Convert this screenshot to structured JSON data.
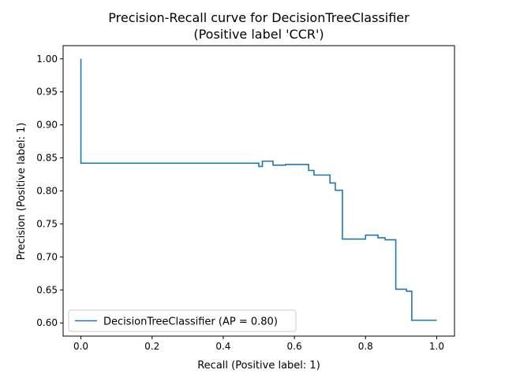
{
  "chart_data": {
    "type": "line",
    "title_line1": "Precision-Recall curve for DecisionTreeClassifier",
    "title_line2": "(Positive label 'CCR')",
    "xlabel": "Recall (Positive label: 1)",
    "ylabel": "Precision (Positive label: 1)",
    "xlim": [
      -0.05,
      1.05
    ],
    "ylim": [
      0.58,
      1.02
    ],
    "xticks": [
      0.0,
      0.2,
      0.4,
      0.6,
      0.8,
      1.0
    ],
    "xtick_labels": [
      "0.0",
      "0.2",
      "0.4",
      "0.6",
      "0.8",
      "1.0"
    ],
    "yticks": [
      0.6,
      0.65,
      0.7,
      0.75,
      0.8,
      0.85,
      0.9,
      0.95,
      1.0
    ],
    "ytick_labels": [
      "0.60",
      "0.65",
      "0.70",
      "0.75",
      "0.80",
      "0.85",
      "0.90",
      "0.95",
      "1.00"
    ],
    "grid": false,
    "legend_position": "lower-left",
    "series": [
      {
        "name": "DecisionTreeClassifier (AP = 0.80)",
        "color": "#1f77b4",
        "step": "post",
        "x": [
          0.0,
          0.0,
          0.5,
          0.51,
          0.54,
          0.575,
          0.64,
          0.655,
          0.7,
          0.715,
          0.735,
          0.8,
          0.835,
          0.855,
          0.885,
          0.915,
          0.93,
          1.0
        ],
        "y": [
          1.0,
          0.842,
          0.837,
          0.845,
          0.839,
          0.84,
          0.831,
          0.824,
          0.812,
          0.801,
          0.727,
          0.733,
          0.729,
          0.726,
          0.651,
          0.648,
          0.604,
          0.604
        ]
      }
    ]
  }
}
